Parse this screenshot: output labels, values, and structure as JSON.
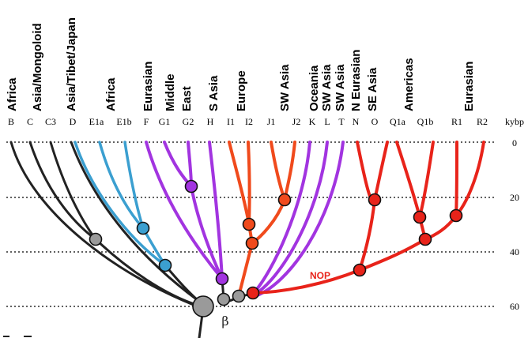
{
  "regions": [
    {
      "id": "africa-1",
      "text": "Africa"
    },
    {
      "id": "asia-mongoloid",
      "text": "Asia/Mongoloid"
    },
    {
      "id": "asia-tibet-japan",
      "text": "Asia/Tibet/Japan"
    },
    {
      "id": "africa-2",
      "text": "Africa"
    },
    {
      "id": "eurasian-1",
      "text": "Eurasian"
    },
    {
      "id": "middle",
      "text": "Middle"
    },
    {
      "id": "east",
      "text": "East"
    },
    {
      "id": "s-asia",
      "text": "S Asia"
    },
    {
      "id": "europe",
      "text": "Europe"
    },
    {
      "id": "sw-asia-1",
      "text": "SW Asia"
    },
    {
      "id": "oceania",
      "text": "Oceania"
    },
    {
      "id": "sw-asia-2",
      "text": "SW Asia"
    },
    {
      "id": "sw-asia-3",
      "text": "SW Asia"
    },
    {
      "id": "n-eurasian",
      "text": "N Eurasian"
    },
    {
      "id": "se-asia",
      "text": "SE Asia"
    },
    {
      "id": "americas",
      "text": "Americas"
    },
    {
      "id": "eurasian-2",
      "text": "Eurasian"
    }
  ],
  "haplogroups": [
    "B",
    "C",
    "C3",
    "D",
    "E1a",
    "E1b",
    "F",
    "G1",
    "G2",
    "H",
    "I1",
    "I2",
    "J1",
    "J2",
    "K",
    "L",
    "T",
    "N",
    "O",
    "Q1a",
    "Q1b",
    "R1",
    "R2"
  ],
  "time_axis": {
    "unit": "kybp",
    "ticks": [
      "0",
      "20",
      "40",
      "60"
    ]
  },
  "annotations": {
    "root": "β",
    "nop": "NOP"
  },
  "colors": {
    "black": "#222222",
    "blue": "#3b9fd0",
    "purple": "#a234e0",
    "orange": "#f04a1c",
    "red": "#e8231a",
    "node_gray": "#9a9a9a"
  }
}
